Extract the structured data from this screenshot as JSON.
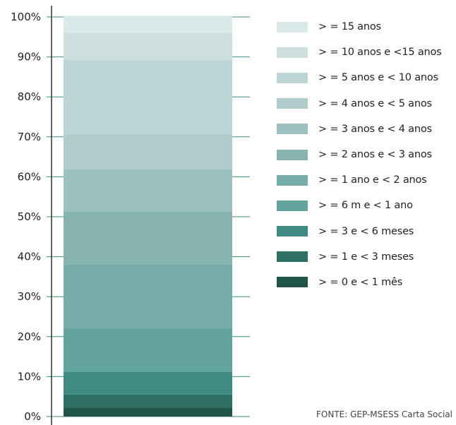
{
  "chart_data": {
    "type": "bar",
    "stacked": true,
    "percent": true,
    "categories": [
      ""
    ],
    "y_ticks": [
      "0%",
      "10%",
      "20%",
      "30%",
      "40%",
      "50%",
      "60%",
      "70%",
      "80%",
      "90%",
      "100%"
    ],
    "ylim": [
      0,
      100
    ],
    "series": [
      {
        "name": "> = 0  e < 1 mês",
        "values": [
          2.2
        ],
        "color": "#1f5447"
      },
      {
        "name": "> = 1  e < 3 meses",
        "values": [
          3.3
        ],
        "color": "#2e6f64"
      },
      {
        "name": "> = 3  e < 6 meses",
        "values": [
          5.7
        ],
        "color": "#3f8a82"
      },
      {
        "name": "> = 6 m e < 1 ano",
        "values": [
          10.8
        ],
        "color": "#64a49e"
      },
      {
        "name": "> = 1 ano e < 2 anos",
        "values": [
          16.1
        ],
        "color": "#76aca7"
      },
      {
        "name": "> = 2 anos e < 3 anos",
        "values": [
          13.2
        ],
        "color": "#87b4b1"
      },
      {
        "name": "> = 3 anos e < 4 anos",
        "values": [
          10.6
        ],
        "color": "#9cc0bf"
      },
      {
        "name": "> = 4 anos e < 5 anos",
        "values": [
          8.8
        ],
        "color": "#afcccb"
      },
      {
        "name": "> = 5 anos e < 10 anos",
        "values": [
          18.5
        ],
        "color": "#bdd6d5"
      },
      {
        "name": "> = 10 anos e <15 anos",
        "values": [
          6.8
        ],
        "color": "#cde0df"
      },
      {
        "name": "> = 15 anos",
        "values": [
          4.3
        ],
        "color": "#dbe9e8"
      }
    ],
    "legend_position": "right",
    "gridlines": true
  },
  "legend_items": [
    "> = 15 anos",
    "> = 10 anos e <15 anos",
    "> = 5 anos e < 10 anos",
    "> = 4 anos e < 5 anos",
    "> = 3 anos e < 4 anos",
    "> = 2 anos e < 3 anos",
    "> = 1 ano e < 2 anos",
    "> = 6 m e < 1 ano",
    "> = 3  e < 6 meses",
    "> = 1  e < 3 meses",
    "> = 0  e < 1 mês"
  ],
  "legend_colors": [
    "#dbe9e8",
    "#cde0df",
    "#bdd6d5",
    "#afcccb",
    "#9cc0bf",
    "#87b4b1",
    "#76aca7",
    "#64a49e",
    "#3f8a82",
    "#2e6f64",
    "#1f5447"
  ],
  "source": "FONTE: GEP-MSESS Carta Social",
  "colors": {
    "gridline": "#3f8a82",
    "axis": "#333333"
  }
}
